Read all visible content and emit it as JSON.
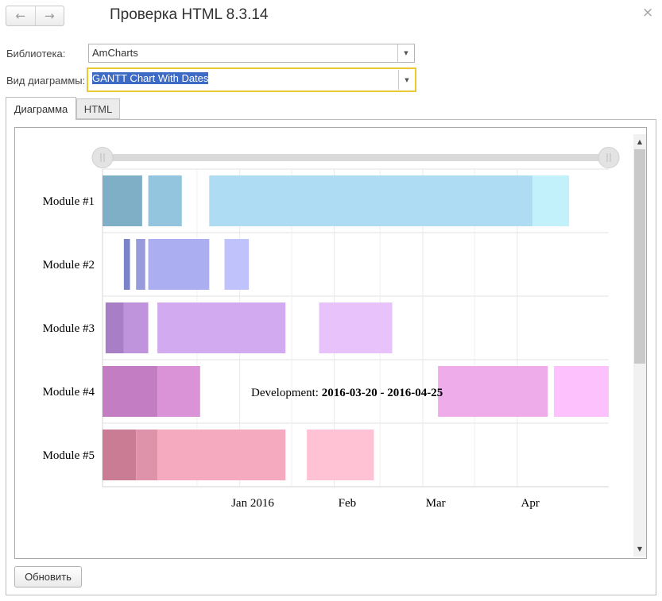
{
  "window": {
    "title": "Проверка HTML 8.3.14",
    "back_icon": "←",
    "forward_icon": "→",
    "close_icon": "×"
  },
  "form": {
    "library_label": "Библиотека:",
    "library_value": "AmCharts",
    "chart_type_label": "Вид диаграммы:",
    "chart_type_value": "GANTT Chart With Dates"
  },
  "tabs": [
    {
      "label": "Диаграмма",
      "active": true
    },
    {
      "label": "HTML",
      "active": false
    }
  ],
  "refresh_button": "Обновить",
  "chart_data": {
    "type": "gantt",
    "categories": [
      "Module #1",
      "Module #2",
      "Module #3",
      "Module #4",
      "Module #5"
    ],
    "x_ticks": [
      {
        "label": "Jan 2016",
        "date": "2016-01-01"
      },
      {
        "label": "Feb",
        "date": "2016-02-01"
      },
      {
        "label": "Mar",
        "date": "2016-03-01"
      },
      {
        "label": "Apr",
        "date": "2016-04-01"
      }
    ],
    "x_range": [
      "2015-12-01",
      "2016-05-15"
    ],
    "tooltip": {
      "prefix": "Development: ",
      "range": "2016-03-20 - 2016-04-25"
    },
    "tasks": [
      {
        "category": "Module #1",
        "start": "2015-12-01",
        "end": "2015-12-14",
        "color": "#7fafc7"
      },
      {
        "category": "Module #1",
        "start": "2015-12-16",
        "end": "2015-12-27",
        "color": "#93c5de"
      },
      {
        "category": "Module #1",
        "start": "2016-01-05",
        "end": "2016-04-20",
        "color": "#aedcf3"
      },
      {
        "category": "Module #1",
        "start": "2016-04-20",
        "end": "2016-05-02",
        "color": "#c2f1fc"
      },
      {
        "category": "Module #2",
        "start": "2015-12-08",
        "end": "2015-12-10",
        "color": "#7b82c7"
      },
      {
        "category": "Module #2",
        "start": "2015-12-12",
        "end": "2015-12-15",
        "color": "#979bda"
      },
      {
        "category": "Module #2",
        "start": "2015-12-16",
        "end": "2016-01-05",
        "color": "#abaef0"
      },
      {
        "category": "Module #2",
        "start": "2016-01-10",
        "end": "2016-01-18",
        "color": "#c0c3fb"
      },
      {
        "category": "Module #3",
        "start": "2015-12-02",
        "end": "2015-12-08",
        "color": "#a87ec7"
      },
      {
        "category": "Module #3",
        "start": "2015-12-08",
        "end": "2015-12-16",
        "color": "#bf94dd"
      },
      {
        "category": "Module #3",
        "start": "2015-12-19",
        "end": "2016-01-30",
        "color": "#d2aaef"
      },
      {
        "category": "Module #3",
        "start": "2016-02-10",
        "end": "2016-03-05",
        "color": "#e8c2fb"
      },
      {
        "category": "Module #4",
        "start": "2015-12-01",
        "end": "2015-12-19",
        "color": "#c27dc3"
      },
      {
        "category": "Module #4",
        "start": "2015-12-19",
        "end": "2016-01-02",
        "color": "#da93d7"
      },
      {
        "category": "Module #4",
        "start": "2016-03-20",
        "end": "2016-04-25",
        "color": "#eeaceb"
      },
      {
        "category": "Module #4",
        "start": "2016-04-27",
        "end": "2016-05-15",
        "color": "#fdc1fd"
      },
      {
        "category": "Module #5",
        "start": "2015-12-01",
        "end": "2015-12-12",
        "color": "#c97c94"
      },
      {
        "category": "Module #5",
        "start": "2015-12-12",
        "end": "2015-12-19",
        "color": "#de93aa"
      },
      {
        "category": "Module #5",
        "start": "2015-12-19",
        "end": "2016-01-30",
        "color": "#f5aabf"
      },
      {
        "category": "Module #5",
        "start": "2016-02-06",
        "end": "2016-02-28",
        "color": "#ffc1d4"
      }
    ]
  }
}
